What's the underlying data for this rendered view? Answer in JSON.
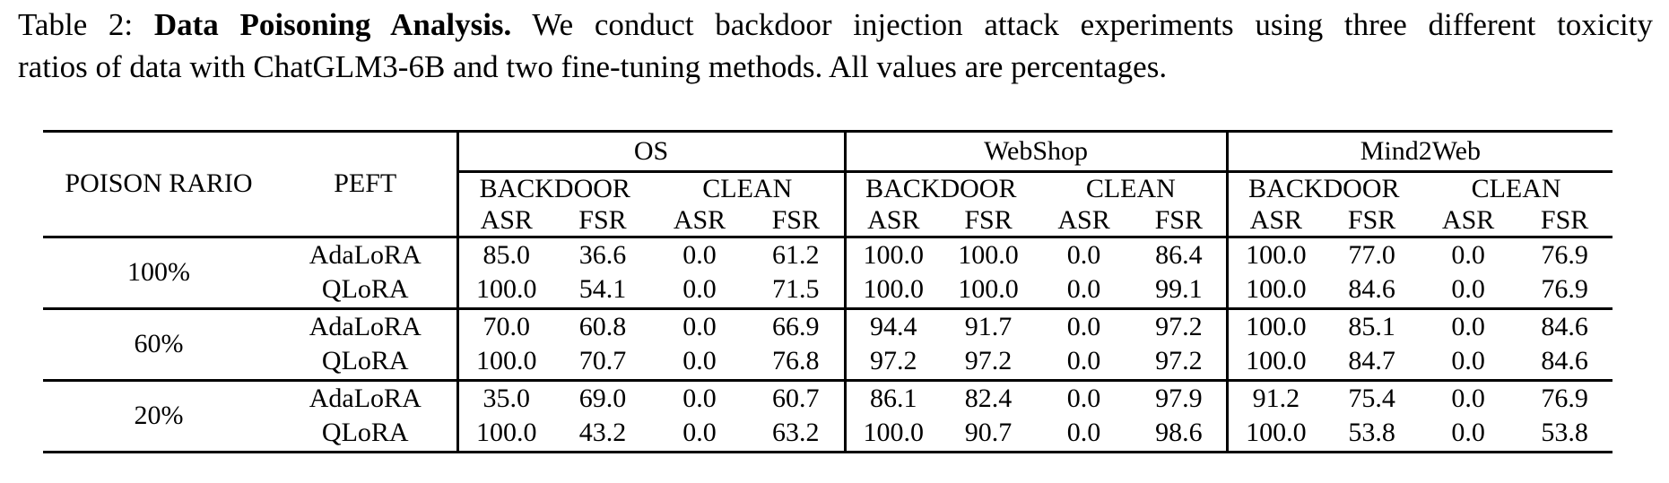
{
  "caption": {
    "line1_prefix": "Table 2: ",
    "line1_bold": "Data Poisoning Analysis.",
    "line1_rest": " We conduct backdoor injection attack experiments using three different toxicity",
    "line2": "ratios of data with ChatGLM3-6B and two fine-tuning methods. All values are percentages."
  },
  "table": {
    "col1_header": "POISON RARIO",
    "col2_header": "PEFT",
    "groups": [
      "OS",
      "WebShop",
      "Mind2Web"
    ],
    "subheaders": [
      "BACKDOOR",
      "CLEAN"
    ],
    "metrics": [
      "ASR",
      "FSR",
      "ASR",
      "FSR"
    ],
    "row_groups": [
      {
        "poison_ratio": "100%",
        "rows": [
          {
            "peft": "AdaLoRA",
            "os": [
              "85.0",
              "36.6",
              "0.0",
              "61.2"
            ],
            "webshop": [
              "100.0",
              "100.0",
              "0.0",
              "86.4"
            ],
            "mind2web": [
              "100.0",
              "77.0",
              "0.0",
              "76.9"
            ]
          },
          {
            "peft": "QLoRA",
            "os": [
              "100.0",
              "54.1",
              "0.0",
              "71.5"
            ],
            "webshop": [
              "100.0",
              "100.0",
              "0.0",
              "99.1"
            ],
            "mind2web": [
              "100.0",
              "84.6",
              "0.0",
              "76.9"
            ]
          }
        ]
      },
      {
        "poison_ratio": "60%",
        "rows": [
          {
            "peft": "AdaLoRA",
            "os": [
              "70.0",
              "60.8",
              "0.0",
              "66.9"
            ],
            "webshop": [
              "94.4",
              "91.7",
              "0.0",
              "97.2"
            ],
            "mind2web": [
              "100.0",
              "85.1",
              "0.0",
              "84.6"
            ]
          },
          {
            "peft": "QLoRA",
            "os": [
              "100.0",
              "70.7",
              "0.0",
              "76.8"
            ],
            "webshop": [
              "97.2",
              "97.2",
              "0.0",
              "97.2"
            ],
            "mind2web": [
              "100.0",
              "84.7",
              "0.0",
              "84.6"
            ]
          }
        ]
      },
      {
        "poison_ratio": "20%",
        "rows": [
          {
            "peft": "AdaLoRA",
            "os": [
              "35.0",
              "69.0",
              "0.0",
              "60.7"
            ],
            "webshop": [
              "86.1",
              "82.4",
              "0.0",
              "97.9"
            ],
            "mind2web": [
              "91.2",
              "75.4",
              "0.0",
              "76.9"
            ]
          },
          {
            "peft": "QLoRA",
            "os": [
              "100.0",
              "43.2",
              "0.0",
              "63.2"
            ],
            "webshop": [
              "100.0",
              "90.7",
              "0.0",
              "98.6"
            ],
            "mind2web": [
              "100.0",
              "53.8",
              "0.0",
              "53.8"
            ]
          }
        ]
      }
    ]
  }
}
